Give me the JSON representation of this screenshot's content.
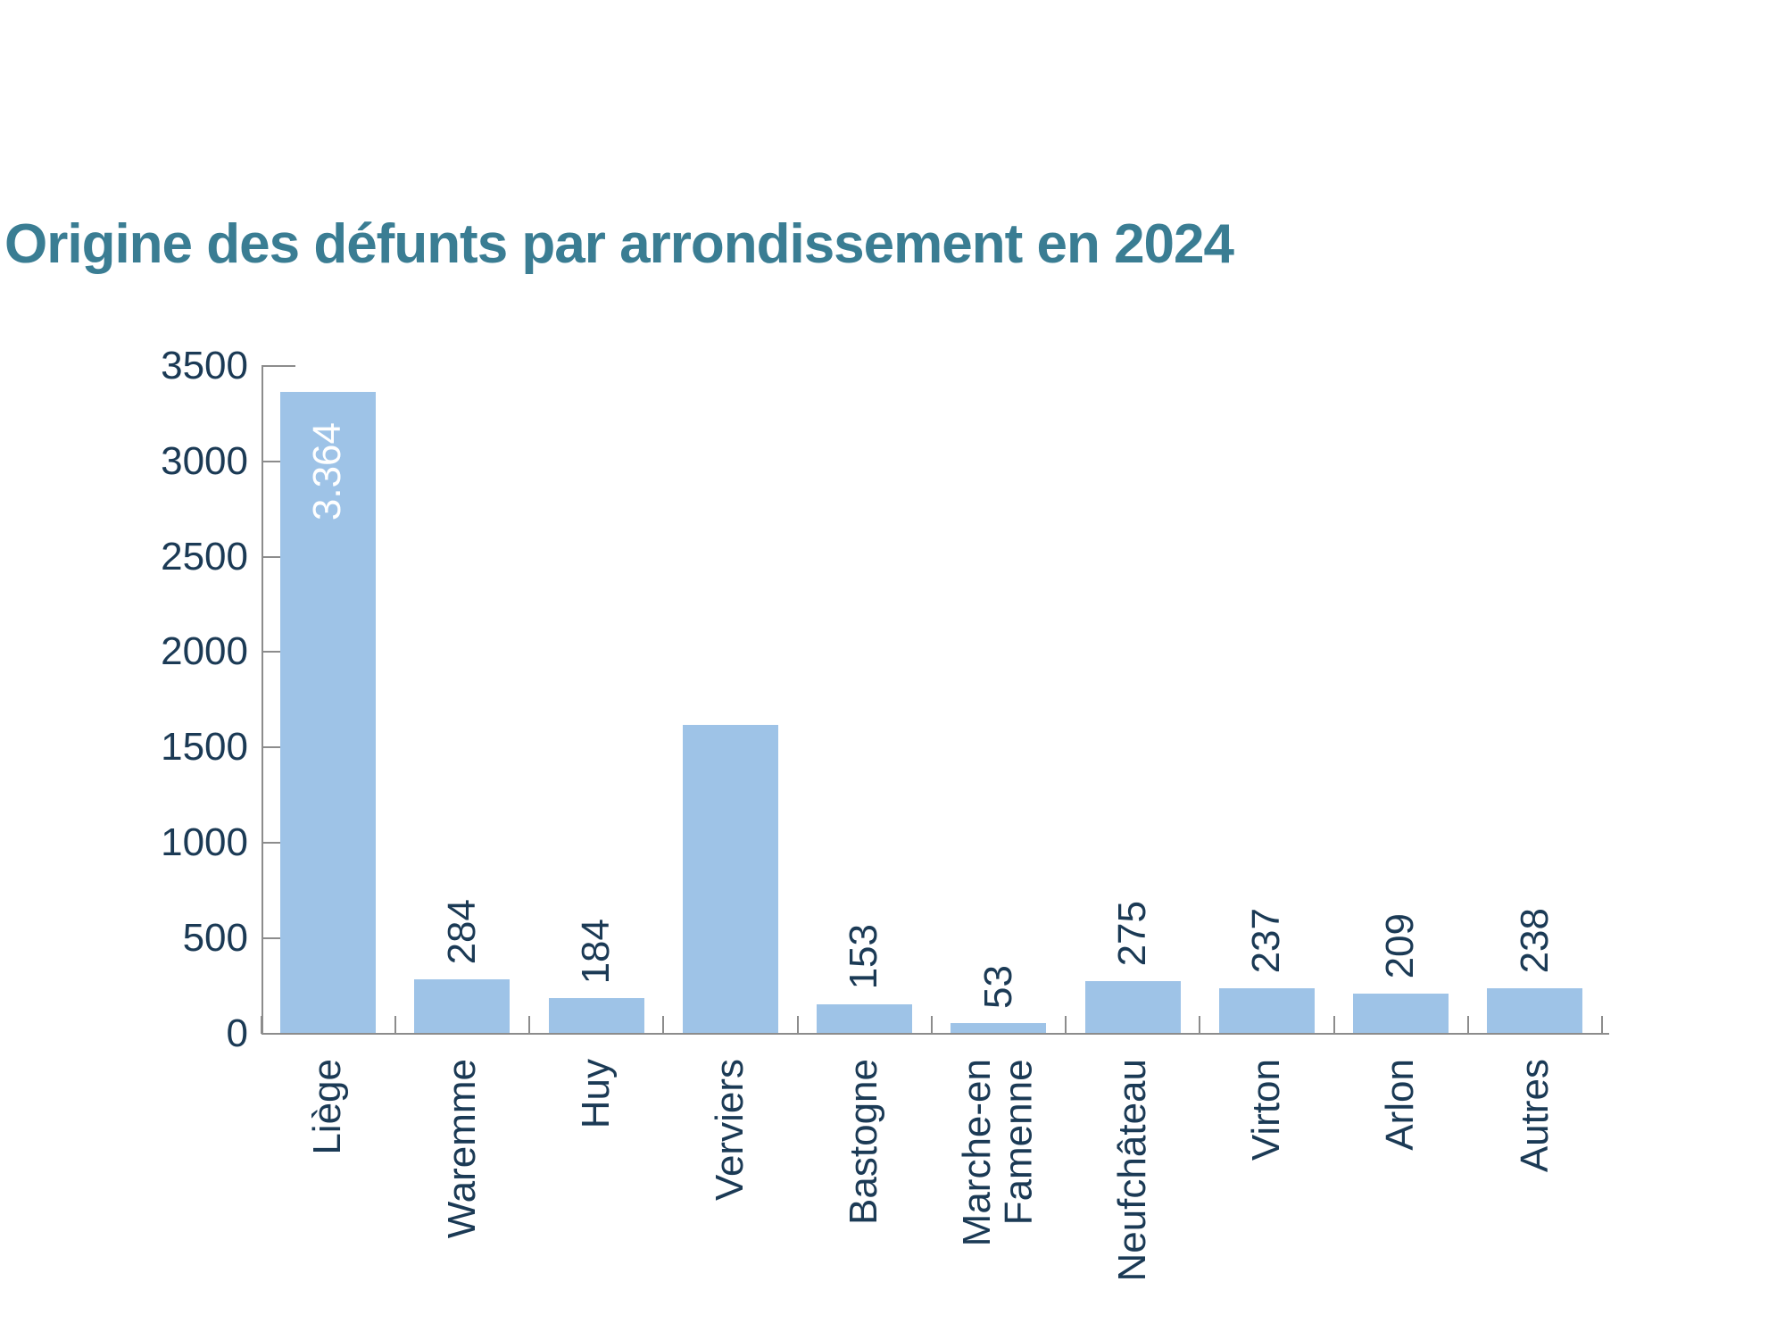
{
  "title": "Origine des défunts par arrondissement en 2024",
  "chart_data": {
    "type": "bar",
    "title": "Origine des défunts par arrondissement en 2024",
    "categories": [
      "Liège",
      "Waremme",
      "Huy",
      "Verviers",
      "Bastogne",
      "Marche-en\nFamenne",
      "Neufchâteau",
      "Virton",
      "Arlon",
      "Autres"
    ],
    "values": [
      3364,
      284,
      184,
      1620,
      153,
      53,
      275,
      237,
      209,
      238
    ],
    "bar_value_labels": [
      "3.364",
      "284",
      "184",
      "",
      "153",
      "53",
      "275",
      "237",
      "209",
      "238"
    ],
    "bar_value_label_styles": [
      "inside-top-white",
      "above",
      "above",
      "none",
      "above",
      "above",
      "above",
      "above",
      "above",
      "above"
    ],
    "xlabel": "",
    "ylabel": "",
    "ylim": [
      0,
      3500
    ],
    "yticks": [
      0,
      500,
      1000,
      1500,
      2000,
      2500,
      3000,
      3500
    ],
    "grid": false,
    "legend": false,
    "colors": {
      "bar": "#9EC3E7",
      "title": "#3A7D93",
      "text": "#1B3A55",
      "axis": "#8C8C8C",
      "inside_label": "#FFFFFF"
    }
  }
}
